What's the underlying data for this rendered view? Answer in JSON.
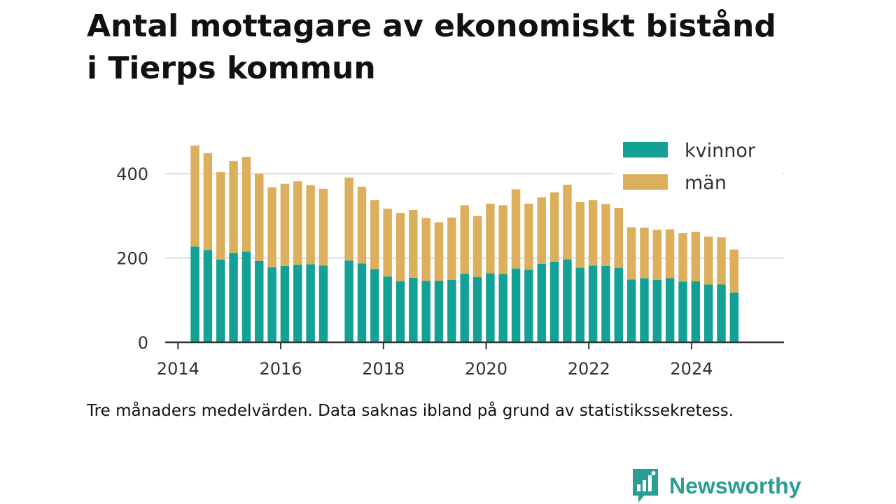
{
  "title": {
    "line1": "Antal mottagare av ekonomiskt bistånd",
    "line2": "i Tierps kommun"
  },
  "caption": "Tre månaders medelvärden. Data saknas ibland på grund av statistikssekretess.",
  "brand": {
    "name": "Newsworthy",
    "icon": "newsworthy-logo-icon",
    "color": "#2a9d94"
  },
  "colors": {
    "kvinnor": "#13a196",
    "man": "#dcaf5c",
    "axis": "#333333",
    "grid": "#dddddd"
  },
  "chart_data": {
    "type": "bar",
    "stacked": true,
    "title": "Antal mottagare av ekonomiskt bistånd i Tierps kommun",
    "xlabel": "",
    "ylabel": "",
    "xlim": [
      2013.75,
      2025.8
    ],
    "ylim": [
      0,
      480
    ],
    "yticks": [
      0,
      200,
      400
    ],
    "xticks": [
      2014,
      2016,
      2018,
      2020,
      2022,
      2024
    ],
    "xtick_labels": [
      "2014",
      "2016",
      "2018",
      "2020",
      "2022",
      "2024"
    ],
    "ytick_labels": [
      "0",
      "200",
      "400"
    ],
    "grid": "horizontal",
    "legend_position": "top-right",
    "x": [
      2014.33,
      2014.58,
      2014.83,
      2015.08,
      2015.33,
      2015.58,
      2015.83,
      2016.08,
      2016.33,
      2016.58,
      2016.83,
      2017.33,
      2017.58,
      2017.83,
      2018.08,
      2018.33,
      2018.58,
      2018.83,
      2019.08,
      2019.33,
      2019.58,
      2019.83,
      2020.08,
      2020.33,
      2020.58,
      2020.83,
      2021.08,
      2021.33,
      2021.58,
      2021.83,
      2022.08,
      2022.33,
      2022.58,
      2022.83,
      2023.08,
      2023.33,
      2023.58,
      2023.83,
      2024.08,
      2024.33,
      2024.58,
      2024.83
    ],
    "series": [
      {
        "name": "kvinnor",
        "color": "#13a196",
        "values": [
          227,
          219,
          196,
          212,
          215,
          193,
          178,
          181,
          184,
          185,
          182,
          194,
          187,
          174,
          156,
          145,
          153,
          146,
          146,
          148,
          163,
          155,
          164,
          162,
          175,
          172,
          186,
          191,
          197,
          177,
          182,
          181,
          176,
          149,
          152,
          148,
          152,
          144,
          145,
          137,
          137,
          118
        ]
      },
      {
        "name": "män",
        "color": "#dcaf5c",
        "values": [
          240,
          230,
          208,
          218,
          225,
          207,
          190,
          195,
          198,
          188,
          182,
          197,
          182,
          163,
          161,
          162,
          161,
          149,
          139,
          148,
          162,
          145,
          165,
          163,
          188,
          157,
          158,
          165,
          177,
          156,
          155,
          147,
          143,
          124,
          120,
          119,
          116,
          115,
          117,
          114,
          112,
          102
        ]
      }
    ]
  }
}
